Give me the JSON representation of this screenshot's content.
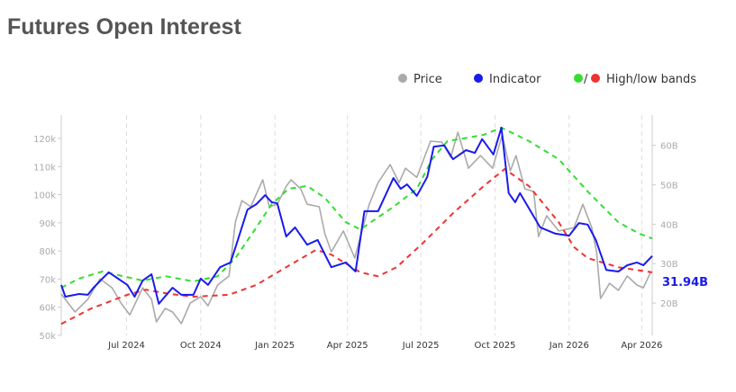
{
  "title": "Futures Open Interest",
  "chart_data": {
    "type": "line",
    "title": "Futures Open Interest",
    "legend": {
      "placement": "top-right",
      "items": [
        {
          "label": "Price",
          "color": "#aaaaaa"
        },
        {
          "label": "Indicator",
          "color": "#1a1aee"
        },
        {
          "label": "High/low bands",
          "colors": [
            "#33dd33",
            "#ee3333"
          ],
          "separator": "/"
        }
      ]
    },
    "x_ticks": [
      "Jul 2024",
      "Oct 2024",
      "Jan 2025",
      "Apr 2025",
      "Jul 2025",
      "Oct 2025",
      "Jan 2026",
      "Apr 2026"
    ],
    "x_tick_dates": [
      "2024-07-01",
      "2024-10-01",
      "2025-01-01",
      "2025-04-01",
      "2025-07-01",
      "2025-10-01",
      "2026-01-01",
      "2026-04-01"
    ],
    "xlim": [
      "2024-04-11",
      "2026-04-14"
    ],
    "left_axis": {
      "ylim": [
        50,
        128.3
      ],
      "ticks": [
        "50k",
        "60k",
        "70k",
        "80k",
        "90k",
        "100k",
        "110k",
        "120k"
      ],
      "tick_values": [
        50,
        60,
        70,
        80,
        90,
        100,
        110,
        120
      ]
    },
    "right_axis": {
      "ylim": [
        11.8,
        67.7
      ],
      "ticks": [
        "20B",
        "30B",
        "40B",
        "50B",
        "60B"
      ],
      "tick_values": [
        20,
        30,
        40,
        50,
        60
      ]
    },
    "grid": "vertical dashed",
    "last_value_label": "31.94B",
    "series": [
      {
        "name": "Price",
        "axis": "left",
        "color": "#aaaaaa",
        "points": [
          [
            "2024-04-11",
            64.7
          ],
          [
            "2024-04-28",
            58.3
          ],
          [
            "2024-05-14",
            62.8
          ],
          [
            "2024-05-29",
            70.1
          ],
          [
            "2024-06-13",
            66.9
          ],
          [
            "2024-06-24",
            61.5
          ],
          [
            "2024-07-05",
            57.3
          ],
          [
            "2024-07-21",
            66.9
          ],
          [
            "2024-08-01",
            62.8
          ],
          [
            "2024-08-07",
            54.8
          ],
          [
            "2024-08-18",
            59.6
          ],
          [
            "2024-08-27",
            58.3
          ],
          [
            "2024-09-07",
            54.2
          ],
          [
            "2024-09-18",
            61.5
          ],
          [
            "2024-10-01",
            63.7
          ],
          [
            "2024-10-10",
            60.5
          ],
          [
            "2024-10-22",
            67.9
          ],
          [
            "2024-11-05",
            71.1
          ],
          [
            "2024-11-13",
            90.3
          ],
          [
            "2024-11-21",
            97.9
          ],
          [
            "2024-12-02",
            95.7
          ],
          [
            "2024-12-17",
            105.3
          ],
          [
            "2024-12-25",
            95.7
          ],
          [
            "2025-01-04",
            96.6
          ],
          [
            "2025-01-15",
            103.0
          ],
          [
            "2025-01-21",
            105.3
          ],
          [
            "2025-02-02",
            102.1
          ],
          [
            "2025-02-10",
            96.6
          ],
          [
            "2025-02-25",
            95.7
          ],
          [
            "2025-03-04",
            86.1
          ],
          [
            "2025-03-12",
            79.7
          ],
          [
            "2025-03-27",
            87.1
          ],
          [
            "2025-04-10",
            77.5
          ],
          [
            "2025-04-17",
            85.1
          ],
          [
            "2025-04-28",
            96.6
          ],
          [
            "2025-05-09",
            104.3
          ],
          [
            "2025-05-24",
            110.7
          ],
          [
            "2025-06-04",
            104.3
          ],
          [
            "2025-06-12",
            109.4
          ],
          [
            "2025-06-26",
            106.2
          ],
          [
            "2025-07-13",
            119.0
          ],
          [
            "2025-07-27",
            118.7
          ],
          [
            "2025-08-07",
            113.3
          ],
          [
            "2025-08-16",
            122.2
          ],
          [
            "2025-08-29",
            109.4
          ],
          [
            "2025-09-13",
            113.9
          ],
          [
            "2025-09-28",
            109.4
          ],
          [
            "2025-10-10",
            121.2
          ],
          [
            "2025-10-20",
            108.5
          ],
          [
            "2025-10-27",
            113.9
          ],
          [
            "2025-11-07",
            102.1
          ],
          [
            "2025-11-18",
            101.1
          ],
          [
            "2025-11-24",
            85.1
          ],
          [
            "2025-12-04",
            92.5
          ],
          [
            "2025-12-19",
            87.1
          ],
          [
            "2026-01-07",
            88.3
          ],
          [
            "2026-01-18",
            96.6
          ],
          [
            "2026-01-29",
            88.3
          ],
          [
            "2026-02-04",
            79.7
          ],
          [
            "2026-02-09",
            63.1
          ],
          [
            "2026-02-20",
            68.5
          ],
          [
            "2026-03-03",
            66.0
          ],
          [
            "2026-03-14",
            71.1
          ],
          [
            "2026-03-26",
            67.9
          ],
          [
            "2026-04-03",
            66.9
          ],
          [
            "2026-04-12",
            72.4
          ]
        ]
      },
      {
        "name": "Indicator",
        "axis": "right",
        "color": "#1a1aee",
        "points": [
          [
            "2024-04-11",
            24.6
          ],
          [
            "2024-04-16",
            21.6
          ],
          [
            "2024-05-03",
            22.3
          ],
          [
            "2024-05-14",
            22.1
          ],
          [
            "2024-05-21",
            23.9
          ],
          [
            "2024-06-01",
            26.2
          ],
          [
            "2024-06-09",
            27.8
          ],
          [
            "2024-07-02",
            24.6
          ],
          [
            "2024-07-11",
            21.6
          ],
          [
            "2024-07-21",
            25.7
          ],
          [
            "2024-08-01",
            27.3
          ],
          [
            "2024-08-10",
            19.8
          ],
          [
            "2024-08-27",
            23.9
          ],
          [
            "2024-09-07",
            22.1
          ],
          [
            "2024-09-22",
            22.1
          ],
          [
            "2024-10-01",
            26.2
          ],
          [
            "2024-10-10",
            24.6
          ],
          [
            "2024-10-25",
            29.1
          ],
          [
            "2024-11-07",
            30.3
          ],
          [
            "2024-11-16",
            36.0
          ],
          [
            "2024-11-28",
            43.7
          ],
          [
            "2024-12-09",
            45.1
          ],
          [
            "2024-12-20",
            47.4
          ],
          [
            "2024-12-28",
            45.6
          ],
          [
            "2025-01-04",
            45.3
          ],
          [
            "2025-01-15",
            36.9
          ],
          [
            "2025-01-26",
            39.2
          ],
          [
            "2025-02-10",
            34.8
          ],
          [
            "2025-02-23",
            36.0
          ],
          [
            "2025-03-12",
            29.1
          ],
          [
            "2025-03-30",
            30.3
          ],
          [
            "2025-04-11",
            28.0
          ],
          [
            "2025-04-22",
            43.3
          ],
          [
            "2025-05-09",
            43.3
          ],
          [
            "2025-05-28",
            51.7
          ],
          [
            "2025-06-06",
            49.0
          ],
          [
            "2025-06-14",
            50.1
          ],
          [
            "2025-06-26",
            47.2
          ],
          [
            "2025-07-09",
            52.0
          ],
          [
            "2025-07-17",
            59.7
          ],
          [
            "2025-07-30",
            60.0
          ],
          [
            "2025-08-10",
            56.5
          ],
          [
            "2025-08-26",
            58.8
          ],
          [
            "2025-09-06",
            58.1
          ],
          [
            "2025-09-15",
            61.6
          ],
          [
            "2025-09-29",
            57.7
          ],
          [
            "2025-10-09",
            64.5
          ],
          [
            "2025-10-18",
            47.9
          ],
          [
            "2025-10-26",
            45.6
          ],
          [
            "2025-11-01",
            47.9
          ],
          [
            "2025-11-26",
            39.2
          ],
          [
            "2025-12-15",
            37.6
          ],
          [
            "2026-01-01",
            37.1
          ],
          [
            "2026-01-13",
            40.3
          ],
          [
            "2026-01-24",
            39.9
          ],
          [
            "2026-02-03",
            36.0
          ],
          [
            "2026-02-16",
            28.4
          ],
          [
            "2026-03-03",
            28.0
          ],
          [
            "2026-03-14",
            29.6
          ],
          [
            "2026-03-26",
            30.3
          ],
          [
            "2026-04-03",
            29.6
          ],
          [
            "2026-04-14",
            31.94
          ]
        ]
      },
      {
        "name": "High band",
        "axis": "right",
        "color": "#33dd33",
        "dashed": true,
        "points": [
          [
            "2024-04-11",
            23.9
          ],
          [
            "2024-05-03",
            26.2
          ],
          [
            "2024-06-01",
            28.0
          ],
          [
            "2024-07-21",
            25.7
          ],
          [
            "2024-08-19",
            26.8
          ],
          [
            "2024-09-22",
            25.5
          ],
          [
            "2024-10-22",
            26.8
          ],
          [
            "2024-11-13",
            31.4
          ],
          [
            "2024-12-09",
            39.2
          ],
          [
            "2024-12-28",
            45.1
          ],
          [
            "2025-01-18",
            49.0
          ],
          [
            "2025-02-10",
            49.7
          ],
          [
            "2025-03-04",
            46.7
          ],
          [
            "2025-03-30",
            40.5
          ],
          [
            "2025-04-17",
            38.7
          ],
          [
            "2025-05-28",
            44.4
          ],
          [
            "2025-06-26",
            49.0
          ],
          [
            "2025-07-15",
            56.5
          ],
          [
            "2025-08-03",
            61.1
          ],
          [
            "2025-08-29",
            62.0
          ],
          [
            "2025-09-17",
            62.7
          ],
          [
            "2025-10-09",
            64.5
          ],
          [
            "2025-11-12",
            61.1
          ],
          [
            "2025-12-19",
            56.5
          ],
          [
            "2026-01-24",
            48.3
          ],
          [
            "2026-03-03",
            40.5
          ],
          [
            "2026-03-29",
            37.6
          ],
          [
            "2026-04-14",
            36.4
          ]
        ]
      },
      {
        "name": "Low band",
        "axis": "right",
        "color": "#ee3333",
        "dashed": true,
        "points": [
          [
            "2024-04-11",
            14.7
          ],
          [
            "2024-05-18",
            18.6
          ],
          [
            "2024-07-02",
            22.1
          ],
          [
            "2024-07-25",
            23.4
          ],
          [
            "2024-08-24",
            22.3
          ],
          [
            "2024-09-22",
            21.6
          ],
          [
            "2024-11-05",
            22.1
          ],
          [
            "2024-12-09",
            24.6
          ],
          [
            "2025-01-15",
            29.1
          ],
          [
            "2025-02-21",
            33.5
          ],
          [
            "2025-03-12",
            32.3
          ],
          [
            "2025-03-30",
            30.0
          ],
          [
            "2025-04-17",
            27.8
          ],
          [
            "2025-05-09",
            26.8
          ],
          [
            "2025-06-01",
            29.1
          ],
          [
            "2025-07-04",
            35.3
          ],
          [
            "2025-08-10",
            42.8
          ],
          [
            "2025-09-17",
            49.7
          ],
          [
            "2025-10-13",
            54.0
          ],
          [
            "2025-11-12",
            49.7
          ],
          [
            "2025-12-19",
            40.5
          ],
          [
            "2026-01-07",
            34.2
          ],
          [
            "2026-01-24",
            31.4
          ],
          [
            "2026-03-03",
            29.1
          ],
          [
            "2026-04-14",
            27.8
          ]
        ]
      }
    ]
  }
}
